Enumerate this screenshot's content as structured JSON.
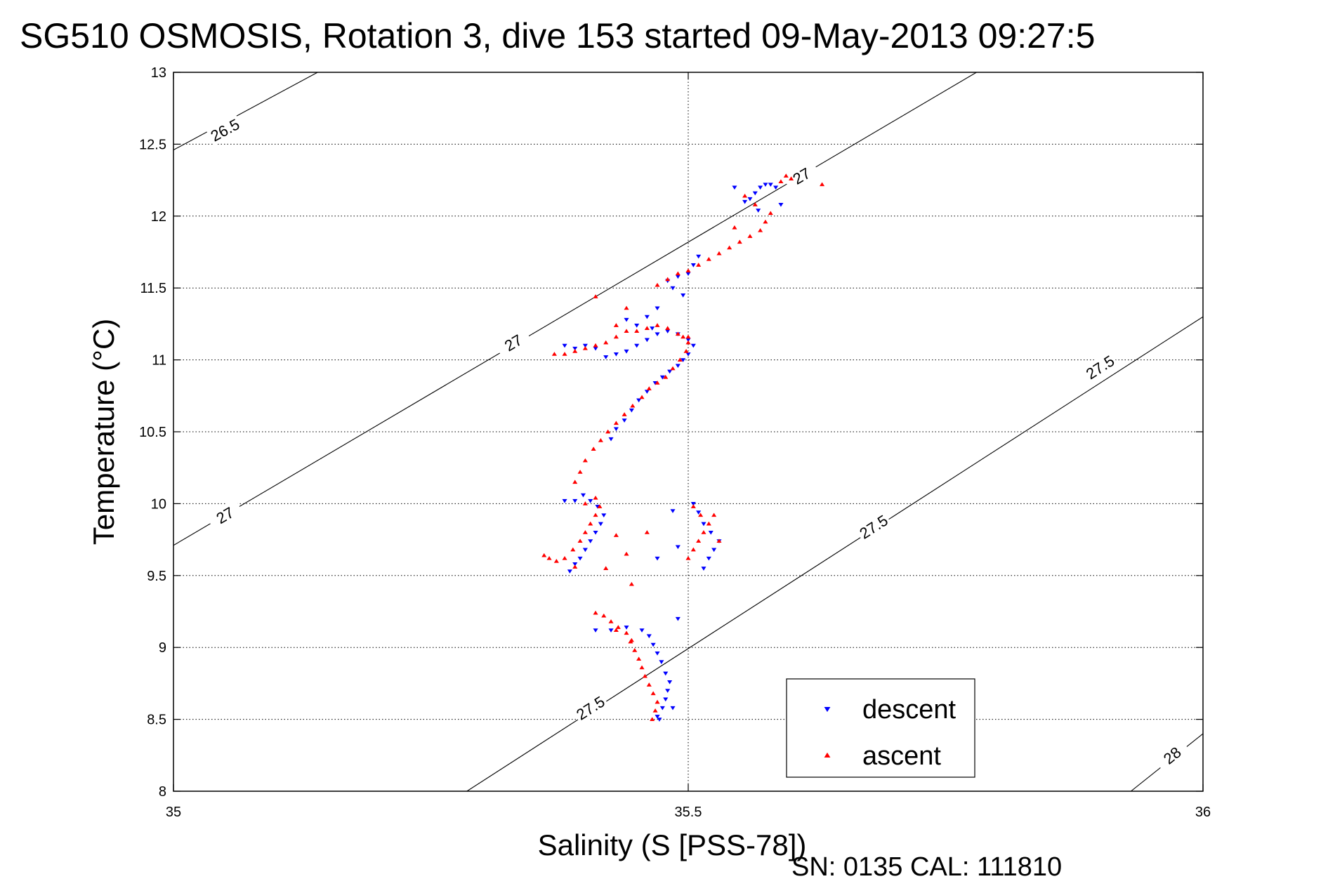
{
  "chart_data": {
    "type": "scatter",
    "title": "SG510 OSMOSIS, Rotation 3, dive 153 started 09-May-2013 09:27:5",
    "xlabel": "Salinity (S [PSS-78])",
    "ylabel": "Temperature (°C)",
    "footer": "SN: 0135  CAL: 111810",
    "xlim": [
      35,
      36
    ],
    "ylim": [
      8,
      13
    ],
    "xticks": [
      35,
      35.5,
      36
    ],
    "xtick_labels": [
      "35",
      "35.5",
      "36"
    ],
    "yticks": [
      8,
      8.5,
      9,
      9.5,
      10,
      10.5,
      11,
      11.5,
      12,
      12.5,
      13
    ],
    "ytick_labels": [
      "8",
      "8.5",
      "9",
      "9.5",
      "10",
      "10.5",
      "11",
      "11.5",
      "12",
      "12.5",
      "13"
    ],
    "grid": true,
    "legend_position": "bottom-right",
    "legend": [
      {
        "label": "descent",
        "color": "#0000ff",
        "marker": "triangle-down"
      },
      {
        "label": "ascent",
        "color": "#ff0000",
        "marker": "triangle-up"
      }
    ],
    "contours": [
      {
        "label": "26.5",
        "points": [
          [
            35.0,
            12.46
          ],
          [
            35.14,
            13.0
          ]
        ],
        "labels_at": [
          [
            35.05,
            12.6
          ]
        ]
      },
      {
        "label": "27",
        "points": [
          [
            35.0,
            9.71
          ],
          [
            35.78,
            13.0
          ]
        ],
        "labels_at": [
          [
            35.05,
            9.92
          ],
          [
            35.33,
            11.12
          ],
          [
            35.61,
            12.28
          ]
        ]
      },
      {
        "label": "27.5",
        "points": [
          [
            35.285,
            8.0
          ],
          [
            36.0,
            11.3
          ]
        ],
        "labels_at": [
          [
            35.405,
            8.58
          ],
          [
            35.68,
            9.84
          ],
          [
            35.9,
            10.95
          ]
        ]
      },
      {
        "label": "28",
        "points": [
          [
            35.93,
            8.0
          ],
          [
            36.0,
            8.4
          ]
        ],
        "labels_at": [
          [
            35.97,
            8.25
          ]
        ]
      }
    ],
    "series": [
      {
        "name": "descent",
        "color": "#0000ff",
        "marker": "triangle-down",
        "points": [
          [
            35.47,
            8.52
          ],
          [
            35.475,
            8.58
          ],
          [
            35.478,
            8.64
          ],
          [
            35.48,
            8.7
          ],
          [
            35.482,
            8.76
          ],
          [
            35.478,
            8.82
          ],
          [
            35.474,
            8.9
          ],
          [
            35.47,
            8.96
          ],
          [
            35.466,
            9.02
          ],
          [
            35.462,
            9.08
          ],
          [
            35.455,
            9.12
          ],
          [
            35.44,
            9.14
          ],
          [
            35.425,
            9.12
          ],
          [
            35.41,
            9.12
          ],
          [
            35.49,
            9.2
          ],
          [
            35.485,
            8.58
          ],
          [
            35.472,
            8.5
          ],
          [
            35.385,
            9.53
          ],
          [
            35.39,
            9.58
          ],
          [
            35.395,
            9.62
          ],
          [
            35.4,
            9.68
          ],
          [
            35.405,
            9.74
          ],
          [
            35.41,
            9.8
          ],
          [
            35.415,
            9.86
          ],
          [
            35.418,
            9.92
          ],
          [
            35.412,
            9.98
          ],
          [
            35.405,
            10.02
          ],
          [
            35.398,
            10.06
          ],
          [
            35.39,
            10.02
          ],
          [
            35.38,
            10.02
          ],
          [
            35.515,
            9.55
          ],
          [
            35.52,
            9.62
          ],
          [
            35.525,
            9.68
          ],
          [
            35.53,
            9.74
          ],
          [
            35.522,
            9.8
          ],
          [
            35.515,
            9.86
          ],
          [
            35.51,
            9.94
          ],
          [
            35.505,
            10.0
          ],
          [
            35.49,
            9.7
          ],
          [
            35.47,
            9.62
          ],
          [
            35.485,
            9.95
          ],
          [
            35.425,
            10.45
          ],
          [
            35.43,
            10.52
          ],
          [
            35.438,
            10.58
          ],
          [
            35.445,
            10.65
          ],
          [
            35.452,
            10.72
          ],
          [
            35.46,
            10.78
          ],
          [
            35.468,
            10.84
          ],
          [
            35.475,
            10.88
          ],
          [
            35.482,
            10.92
          ],
          [
            35.49,
            10.96
          ],
          [
            35.495,
            11.0
          ],
          [
            35.5,
            11.04
          ],
          [
            35.42,
            11.02
          ],
          [
            35.43,
            11.04
          ],
          [
            35.44,
            11.06
          ],
          [
            35.45,
            11.1
          ],
          [
            35.46,
            11.14
          ],
          [
            35.47,
            11.18
          ],
          [
            35.48,
            11.2
          ],
          [
            35.49,
            11.18
          ],
          [
            35.5,
            11.14
          ],
          [
            35.505,
            11.1
          ],
          [
            35.39,
            11.08
          ],
          [
            35.38,
            11.1
          ],
          [
            35.4,
            11.1
          ],
          [
            35.41,
            11.08
          ],
          [
            35.45,
            11.24
          ],
          [
            35.46,
            11.3
          ],
          [
            35.44,
            11.28
          ],
          [
            35.465,
            11.22
          ],
          [
            35.48,
            11.55
          ],
          [
            35.485,
            11.5
          ],
          [
            35.49,
            11.58
          ],
          [
            35.5,
            11.6
          ],
          [
            35.505,
            11.66
          ],
          [
            35.51,
            11.72
          ],
          [
            35.495,
            11.45
          ],
          [
            35.47,
            11.36
          ],
          [
            35.56,
            12.12
          ],
          [
            35.565,
            12.16
          ],
          [
            35.57,
            12.2
          ],
          [
            35.575,
            12.22
          ],
          [
            35.58,
            12.22
          ],
          [
            35.585,
            12.2
          ],
          [
            35.555,
            12.1
          ],
          [
            35.545,
            12.2
          ],
          [
            35.59,
            12.08
          ],
          [
            35.568,
            12.04
          ]
        ]
      },
      {
        "name": "ascent",
        "color": "#ff0000",
        "marker": "triangle-up",
        "points": [
          [
            35.465,
            8.5
          ],
          [
            35.468,
            8.56
          ],
          [
            35.47,
            8.62
          ],
          [
            35.466,
            8.68
          ],
          [
            35.462,
            8.74
          ],
          [
            35.458,
            8.8
          ],
          [
            35.455,
            8.86
          ],
          [
            35.452,
            8.92
          ],
          [
            35.448,
            8.98
          ],
          [
            35.444,
            9.04
          ],
          [
            35.44,
            9.1
          ],
          [
            35.432,
            9.14
          ],
          [
            35.425,
            9.18
          ],
          [
            35.418,
            9.22
          ],
          [
            35.41,
            9.24
          ],
          [
            35.43,
            9.12
          ],
          [
            35.445,
            9.05
          ],
          [
            35.36,
            9.64
          ],
          [
            35.365,
            9.62
          ],
          [
            35.372,
            9.6
          ],
          [
            35.38,
            9.62
          ],
          [
            35.388,
            9.68
          ],
          [
            35.395,
            9.74
          ],
          [
            35.4,
            9.8
          ],
          [
            35.405,
            9.86
          ],
          [
            35.41,
            9.92
          ],
          [
            35.414,
            9.98
          ],
          [
            35.41,
            10.04
          ],
          [
            35.4,
            10.0
          ],
          [
            35.39,
            9.56
          ],
          [
            35.43,
            9.78
          ],
          [
            35.445,
            9.44
          ],
          [
            35.46,
            9.8
          ],
          [
            35.42,
            9.55
          ],
          [
            35.44,
            9.65
          ],
          [
            35.5,
            9.62
          ],
          [
            35.505,
            9.68
          ],
          [
            35.51,
            9.74
          ],
          [
            35.515,
            9.8
          ],
          [
            35.52,
            9.86
          ],
          [
            35.512,
            9.92
          ],
          [
            35.505,
            9.98
          ],
          [
            35.525,
            9.92
          ],
          [
            35.53,
            9.74
          ],
          [
            35.39,
            10.15
          ],
          [
            35.395,
            10.22
          ],
          [
            35.4,
            10.3
          ],
          [
            35.408,
            10.38
          ],
          [
            35.415,
            10.44
          ],
          [
            35.422,
            10.5
          ],
          [
            35.43,
            10.56
          ],
          [
            35.438,
            10.62
          ],
          [
            35.446,
            10.68
          ],
          [
            35.455,
            10.74
          ],
          [
            35.462,
            10.8
          ],
          [
            35.47,
            10.84
          ],
          [
            35.478,
            10.88
          ],
          [
            35.485,
            10.94
          ],
          [
            35.492,
            11.0
          ],
          [
            35.498,
            11.06
          ],
          [
            35.5,
            11.12
          ],
          [
            35.495,
            11.16
          ],
          [
            35.37,
            11.04
          ],
          [
            35.38,
            11.04
          ],
          [
            35.39,
            11.06
          ],
          [
            35.4,
            11.08
          ],
          [
            35.41,
            11.1
          ],
          [
            35.42,
            11.12
          ],
          [
            35.43,
            11.16
          ],
          [
            35.44,
            11.2
          ],
          [
            35.45,
            11.2
          ],
          [
            35.46,
            11.22
          ],
          [
            35.47,
            11.24
          ],
          [
            35.48,
            11.22
          ],
          [
            35.49,
            11.18
          ],
          [
            35.5,
            11.16
          ],
          [
            35.43,
            11.24
          ],
          [
            35.41,
            11.44
          ],
          [
            35.44,
            11.36
          ],
          [
            35.47,
            11.52
          ],
          [
            35.48,
            11.56
          ],
          [
            35.49,
            11.6
          ],
          [
            35.5,
            11.62
          ],
          [
            35.51,
            11.66
          ],
          [
            35.52,
            11.7
          ],
          [
            35.53,
            11.74
          ],
          [
            35.54,
            11.78
          ],
          [
            35.55,
            11.82
          ],
          [
            35.56,
            11.86
          ],
          [
            35.57,
            11.9
          ],
          [
            35.575,
            11.96
          ],
          [
            35.58,
            12.02
          ],
          [
            35.565,
            12.08
          ],
          [
            35.555,
            12.14
          ],
          [
            35.59,
            12.24
          ],
          [
            35.595,
            12.28
          ],
          [
            35.6,
            12.26
          ],
          [
            35.63,
            12.22
          ],
          [
            35.545,
            11.92
          ]
        ]
      }
    ]
  }
}
